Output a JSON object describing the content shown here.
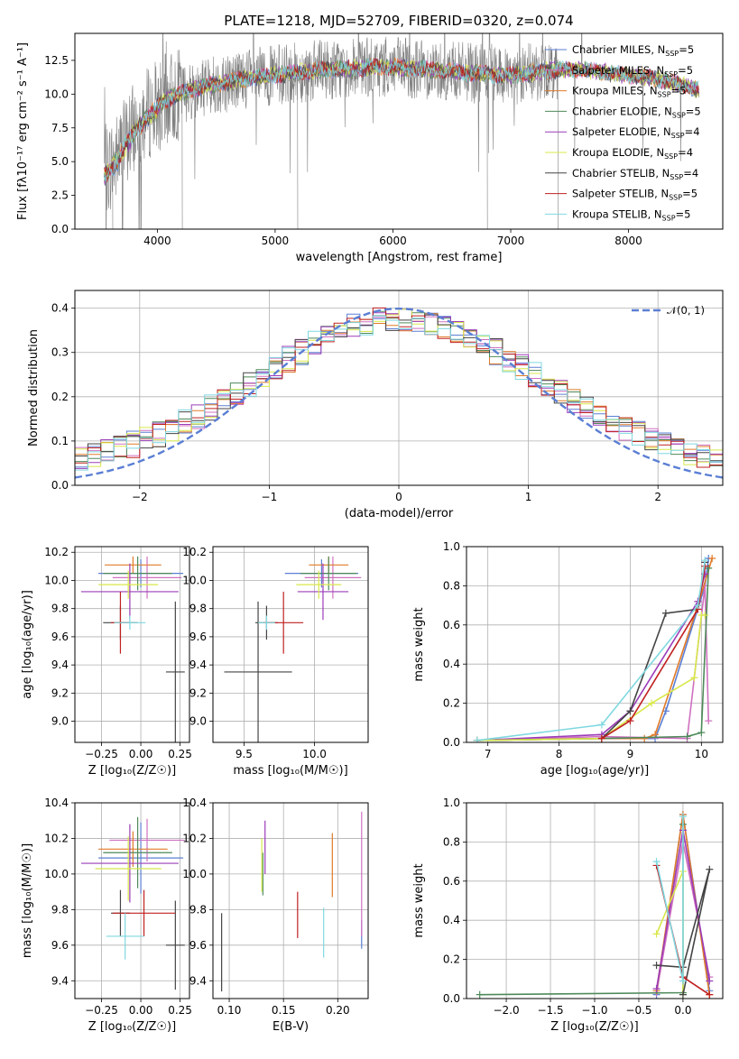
{
  "chart_data": [
    {
      "id": "spectrum",
      "type": "line",
      "title": "PLATE=1218, MJD=52709, FIBERID=0320, z=0.074",
      "xlabel": "wavelength [Angstrom, rest frame]",
      "ylabel": "Flux [fλ10⁻¹⁷ erg cm⁻² s⁻¹ A⁻¹]",
      "xlim": [
        3300,
        8800
      ],
      "ylim": [
        0,
        14.5
      ],
      "xticks": [
        4000,
        5000,
        6000,
        7000,
        8000
      ],
      "yticks": [
        0.0,
        2.5,
        5.0,
        7.5,
        10.0,
        12.5
      ],
      "grid": false,
      "legend_position": "top-right",
      "data_range": [
        3550,
        8600
      ],
      "continuum": {
        "x": [
          3550,
          3650,
          3750,
          3850,
          3950,
          4050,
          4150,
          4250,
          4400,
          4600,
          4800,
          5000,
          5200,
          5400,
          5600,
          5800,
          6000,
          6200,
          6400,
          6600,
          6800,
          7000,
          7200,
          7400,
          7600,
          7800,
          8000,
          8200,
          8400,
          8600
        ],
        "y": [
          4.2,
          5.2,
          6.8,
          8.0,
          8.8,
          9.4,
          9.9,
          10.2,
          10.6,
          10.9,
          11.2,
          11.4,
          11.6,
          11.8,
          11.9,
          12.0,
          12.0,
          11.9,
          11.8,
          11.6,
          11.5,
          11.4,
          11.6,
          11.8,
          11.8,
          11.6,
          11.4,
          11.2,
          10.8,
          10.3
        ]
      },
      "series": [
        {
          "name": "Chabrier MILES, N_SSP=5",
          "color": "#5b7fd4"
        },
        {
          "name": "Salpeter MILES, N_SSP=5",
          "color": "#d070c0"
        },
        {
          "name": "Kroupa MILES, N_SSP=5",
          "color": "#e07b28"
        },
        {
          "name": "Chabrier ELODIE, N_SSP=5",
          "color": "#4e8a5a"
        },
        {
          "name": "Salpeter ELODIE, N_SSP=4",
          "color": "#9b3cb8"
        },
        {
          "name": "Kroupa ELODIE, N_SSP=4",
          "color": "#d8e84a"
        },
        {
          "name": "Chabrier STELIB, N_SSP=4",
          "color": "#444444"
        },
        {
          "name": "Salpeter STELIB, N_SSP=5",
          "color": "#c02020"
        },
        {
          "name": "Kroupa STELIB, N_SSP=5",
          "color": "#7fd8e0"
        }
      ],
      "legend_parts": [
        {
          "pre": "Chabrier MILES, N",
          "sub": "SSP",
          "post": "=5"
        },
        {
          "pre": "Salpeter MILES, N",
          "sub": "SSP",
          "post": "=5"
        },
        {
          "pre": "Kroupa MILES, N",
          "sub": "SSP",
          "post": "=5"
        },
        {
          "pre": "Chabrier ELODIE, N",
          "sub": "SSP",
          "post": "=5"
        },
        {
          "pre": "Salpeter ELODIE, N",
          "sub": "SSP",
          "post": "=4"
        },
        {
          "pre": "Kroupa ELODIE, N",
          "sub": "SSP",
          "post": "=4"
        },
        {
          "pre": "Chabrier STELIB, N",
          "sub": "SSP",
          "post": "=4"
        },
        {
          "pre": "Salpeter STELIB, N",
          "sub": "SSP",
          "post": "=5"
        },
        {
          "pre": "Kroupa STELIB, N",
          "sub": "SSP",
          "post": "=5"
        }
      ],
      "data_series": {
        "name": "data",
        "color": "#808080"
      }
    },
    {
      "id": "residuals",
      "type": "histogram",
      "xlabel": "(data-model)/error",
      "ylabel": "Normed distribution",
      "xlim": [
        -2.5,
        2.5
      ],
      "ylim": [
        0,
        0.44
      ],
      "xticks": [
        -2,
        -1,
        0,
        1,
        2
      ],
      "yticks": [
        0.0,
        0.1,
        0.2,
        0.3,
        0.4
      ],
      "grid": true,
      "bin_width": 0.1,
      "bin_start": -2.5,
      "gaussian": {
        "label": "𝒩(0, 1)",
        "mean": 0,
        "sigma": 1,
        "color": "#5b7fd4"
      },
      "legend_position": "top-right",
      "series_note": "one step histogram per model series, same colors as spectrum panel"
    },
    {
      "id": "age-vs-Z",
      "type": "scatter",
      "xlabel": "Z [log₁₀(Z/Z☉)]",
      "ylabel": "age [log₁₀(age/yr)]",
      "xlim": [
        -0.42,
        0.31
      ],
      "ylim": [
        8.85,
        10.24
      ],
      "xticks": [
        -0.25,
        0.0,
        0.25
      ],
      "yticks": [
        9.0,
        9.2,
        9.4,
        9.6,
        9.8,
        10.0,
        10.2
      ],
      "grid": true,
      "points": [
        {
          "x": 0.0,
          "y": 10.05,
          "xerr": 0.27,
          "yerr": 0.1,
          "color": "#5b7fd4"
        },
        {
          "x": 0.04,
          "y": 10.02,
          "xerr": 0.22,
          "yerr": 0.15,
          "color": "#d070c0"
        },
        {
          "x": -0.05,
          "y": 10.11,
          "xerr": 0.18,
          "yerr": 0.06,
          "color": "#e07b28"
        },
        {
          "x": -0.02,
          "y": 10.05,
          "xerr": 0.22,
          "yerr": 0.12,
          "color": "#4e8a5a"
        },
        {
          "x": -0.07,
          "y": 9.92,
          "xerr": 0.31,
          "yerr": 0.2,
          "color": "#9b3cb8"
        },
        {
          "x": -0.08,
          "y": 9.97,
          "xerr": 0.19,
          "yerr": 0.1,
          "color": "#d8e84a"
        },
        {
          "x": 0.22,
          "y": 9.35,
          "xerr": 0.06,
          "yerr": 0.5,
          "color": "#444444"
        },
        {
          "x": -0.13,
          "y": 9.7,
          "xerr": 0.11,
          "yerr": 0.12,
          "color": "#444444"
        },
        {
          "x": -0.13,
          "y": 9.7,
          "xerr": 0.06,
          "yerr": 0.22,
          "color": "#c02020"
        },
        {
          "x": -0.07,
          "y": 9.7,
          "xerr": 0.1,
          "yerr": 0.05,
          "color": "#7fd8e0"
        }
      ]
    },
    {
      "id": "age-vs-mass",
      "type": "scatter",
      "xlabel": "mass [log₁₀(M/M☉)]",
      "ylabel": "",
      "xlim": [
        9.28,
        10.38
      ],
      "ylim": [
        8.85,
        10.24
      ],
      "xticks": [
        9.5,
        10.0
      ],
      "yticks": [
        9.0,
        9.2,
        9.4,
        9.6,
        9.8,
        10.0,
        10.2
      ],
      "grid": true,
      "points": [
        {
          "x": 10.05,
          "y": 10.05,
          "xerr": 0.26,
          "yerr": 0.1,
          "color": "#5b7fd4"
        },
        {
          "x": 10.13,
          "y": 10.02,
          "xerr": 0.2,
          "yerr": 0.15,
          "color": "#d070c0"
        },
        {
          "x": 10.1,
          "y": 10.11,
          "xerr": 0.14,
          "yerr": 0.06,
          "color": "#e07b28"
        },
        {
          "x": 10.1,
          "y": 10.05,
          "xerr": 0.2,
          "yerr": 0.12,
          "color": "#4e8a5a"
        },
        {
          "x": 10.06,
          "y": 9.92,
          "xerr": 0.18,
          "yerr": 0.2,
          "color": "#9b3cb8"
        },
        {
          "x": 10.03,
          "y": 9.97,
          "xerr": 0.16,
          "yerr": 0.1,
          "color": "#d8e84a"
        },
        {
          "x": 9.6,
          "y": 9.35,
          "xerr": 0.24,
          "yerr": 0.5,
          "color": "#444444"
        },
        {
          "x": 9.66,
          "y": 9.7,
          "xerr": 0.08,
          "yerr": 0.12,
          "color": "#444444"
        },
        {
          "x": 9.78,
          "y": 9.7,
          "xerr": 0.14,
          "yerr": 0.22,
          "color": "#c02020"
        },
        {
          "x": 9.66,
          "y": 9.7,
          "xerr": 0.06,
          "yerr": 0.05,
          "color": "#7fd8e0"
        }
      ]
    },
    {
      "id": "massweight-vs-age",
      "type": "line",
      "xlabel": "age [log₁₀(age/yr)]",
      "ylabel": "mass weight",
      "xlim": [
        6.7,
        10.3
      ],
      "ylim": [
        0,
        1.0
      ],
      "xticks": [
        7,
        8,
        9,
        10
      ],
      "yticks": [
        0.0,
        0.2,
        0.4,
        0.6,
        0.8,
        1.0
      ],
      "grid": true,
      "series": [
        {
          "name": "Chabrier MILES",
          "color": "#5b7fd4",
          "x": [
            6.85,
            8.6,
            9.35,
            9.5,
            10.05,
            10.1
          ],
          "y": [
            0.01,
            0.02,
            0.02,
            0.16,
            0.8,
            0.94
          ]
        },
        {
          "name": "Salpeter MILES",
          "color": "#d070c0",
          "x": [
            6.85,
            8.6,
            9.8,
            10.05,
            10.1
          ],
          "y": [
            0.01,
            0.03,
            0.02,
            0.8,
            0.11
          ]
        },
        {
          "name": "Kroupa MILES",
          "color": "#e07b28",
          "x": [
            6.85,
            8.6,
            9.2,
            9.35,
            9.95,
            10.15
          ],
          "y": [
            0.01,
            0.02,
            0.02,
            0.04,
            0.7,
            0.94
          ]
        },
        {
          "name": "Chabrier ELODIE",
          "color": "#4e8a5a",
          "x": [
            6.85,
            8.6,
            9.8,
            10.0,
            10.1
          ],
          "y": [
            0.01,
            0.02,
            0.03,
            0.05,
            0.89
          ]
        },
        {
          "name": "Salpeter ELODIE",
          "color": "#9b3cb8",
          "x": [
            6.85,
            8.6,
            9.0,
            9.95,
            10.05
          ],
          "y": [
            0.01,
            0.04,
            0.16,
            0.72,
            0.86
          ]
        },
        {
          "name": "Kroupa ELODIE",
          "color": "#d8e84a",
          "x": [
            6.85,
            8.6,
            9.3,
            9.9,
            10.0,
            10.05
          ],
          "y": [
            0.01,
            0.02,
            0.2,
            0.33,
            0.65,
            0.65
          ]
        },
        {
          "name": "Chabrier STELIB",
          "color": "#444444",
          "x": [
            8.6,
            9.0,
            9.5,
            9.95,
            10.05
          ],
          "y": [
            0.02,
            0.16,
            0.66,
            0.68,
            0.92
          ]
        },
        {
          "name": "Salpeter STELIB",
          "color": "#c02020",
          "x": [
            8.6,
            9.0,
            9.95,
            10.05
          ],
          "y": [
            0.02,
            0.11,
            0.68,
            0.9
          ]
        },
        {
          "name": "Kroupa STELIB",
          "color": "#7fd8e0",
          "x": [
            6.85,
            8.6,
            9.95,
            10.05
          ],
          "y": [
            0.01,
            0.09,
            0.7,
            0.93
          ]
        }
      ]
    },
    {
      "id": "mass-vs-Z",
      "type": "scatter",
      "xlabel": "Z [log₁₀(Z/Z☉)]",
      "ylabel": "mass [log₁₀(M/M☉)]",
      "xlim": [
        -0.42,
        0.31
      ],
      "ylim": [
        9.3,
        10.4
      ],
      "xticks": [
        -0.25,
        0.0,
        0.25
      ],
      "yticks": [
        9.4,
        9.6,
        9.8,
        10.0,
        10.2,
        10.4
      ],
      "grid": true,
      "points": [
        {
          "x": 0.0,
          "y": 10.09,
          "xerr": 0.27,
          "yerr": 0.2,
          "color": "#5b7fd4"
        },
        {
          "x": 0.04,
          "y": 10.19,
          "xerr": 0.24,
          "yerr": 0.12,
          "color": "#d070c0"
        },
        {
          "x": -0.05,
          "y": 10.14,
          "xerr": 0.22,
          "yerr": 0.1,
          "color": "#e07b28"
        },
        {
          "x": -0.02,
          "y": 10.12,
          "xerr": 0.22,
          "yerr": 0.2,
          "color": "#4e8a5a"
        },
        {
          "x": -0.07,
          "y": 10.06,
          "xerr": 0.31,
          "yerr": 0.22,
          "color": "#9b3cb8"
        },
        {
          "x": -0.08,
          "y": 10.03,
          "xerr": 0.21,
          "yerr": 0.18,
          "color": "#d8e84a"
        },
        {
          "x": 0.22,
          "y": 9.6,
          "xerr": 0.06,
          "yerr": 0.25,
          "color": "#444444"
        },
        {
          "x": -0.13,
          "y": 9.78,
          "xerr": 0.06,
          "yerr": 0.13,
          "color": "#444444"
        },
        {
          "x": 0.02,
          "y": 9.78,
          "xerr": 0.2,
          "yerr": 0.13,
          "color": "#c02020"
        },
        {
          "x": -0.1,
          "y": 9.65,
          "xerr": 0.12,
          "yerr": 0.13,
          "color": "#7fd8e0"
        }
      ]
    },
    {
      "id": "mass-vs-EBV",
      "type": "scatter",
      "xlabel": "E(B-V)",
      "ylabel": "",
      "xlim": [
        0.085,
        0.228
      ],
      "ylim": [
        9.3,
        10.4
      ],
      "xticks": [
        0.1,
        0.15,
        0.2
      ],
      "yticks": [
        9.4,
        9.6,
        9.8,
        10.0,
        10.2,
        10.4
      ],
      "grid": true,
      "points": [
        {
          "x": 0.222,
          "y": 9.66,
          "xerr": 0.0,
          "yerr": 0.08,
          "color": "#5b7fd4"
        },
        {
          "x": 0.222,
          "y": 10.0,
          "xerr": 0.0,
          "yerr": 0.35,
          "color": "#d070c0"
        },
        {
          "x": 0.195,
          "y": 10.05,
          "xerr": 0.0,
          "yerr": 0.18,
          "color": "#e07b28"
        },
        {
          "x": 0.131,
          "y": 10.0,
          "xerr": 0.0,
          "yerr": 0.12,
          "color": "#4e8a5a"
        },
        {
          "x": 0.133,
          "y": 10.15,
          "xerr": 0.0,
          "yerr": 0.15,
          "color": "#9b3cb8"
        },
        {
          "x": 0.13,
          "y": 10.05,
          "xerr": 0.0,
          "yerr": 0.15,
          "color": "#d8e84a"
        },
        {
          "x": 0.093,
          "y": 9.56,
          "xerr": 0.0,
          "yerr": 0.22,
          "color": "#444444"
        },
        {
          "x": 0.163,
          "y": 9.77,
          "xerr": 0.0,
          "yerr": 0.13,
          "color": "#c02020"
        },
        {
          "x": 0.187,
          "y": 9.67,
          "xerr": 0.0,
          "yerr": 0.14,
          "color": "#7fd8e0"
        }
      ]
    },
    {
      "id": "massweight-vs-Z",
      "type": "line",
      "xlabel": "Z [log₁₀(Z/Z☉)]",
      "ylabel": "mass weight",
      "xlim": [
        -2.45,
        0.45
      ],
      "ylim": [
        0,
        1.0
      ],
      "xticks": [
        -2.0,
        -1.5,
        -1.0,
        -0.5,
        0.0
      ],
      "yticks": [
        0.0,
        0.2,
        0.4,
        0.6,
        0.8,
        1.0
      ],
      "grid": true,
      "series": [
        {
          "name": "Chabrier MILES",
          "color": "#5b7fd4",
          "x": [
            -0.3,
            0.0,
            0.3
          ],
          "y": [
            0.02,
            0.94,
            0.04
          ]
        },
        {
          "name": "Salpeter MILES",
          "color": "#d070c0",
          "x": [
            -0.3,
            0.0,
            0.3
          ],
          "y": [
            0.03,
            0.8,
            0.11
          ]
        },
        {
          "name": "Kroupa MILES",
          "color": "#e07b28",
          "x": [
            -0.3,
            0.0,
            0.3
          ],
          "y": [
            0.04,
            0.94,
            0.02
          ]
        },
        {
          "name": "Chabrier ELODIE",
          "color": "#4e8a5a",
          "x": [
            -2.3,
            0.0,
            0.0
          ],
          "y": [
            0.02,
            0.03,
            0.89
          ]
        },
        {
          "name": "Salpeter ELODIE",
          "color": "#9b3cb8",
          "x": [
            -0.3,
            0.0,
            0.3
          ],
          "y": [
            0.05,
            0.86,
            0.09
          ]
        },
        {
          "name": "Kroupa ELODIE",
          "color": "#d8e84a",
          "x": [
            -0.3,
            0.0,
            0.0
          ],
          "y": [
            0.33,
            0.65,
            0.02
          ]
        },
        {
          "name": "Chabrier STELIB",
          "color": "#444444",
          "x": [
            -0.3,
            0.0,
            0.3,
            0.0
          ],
          "y": [
            0.17,
            0.16,
            0.66,
            0.02
          ]
        },
        {
          "name": "Salpeter STELIB",
          "color": "#c02020",
          "x": [
            -0.3,
            0.0,
            0.3
          ],
          "y": [
            0.68,
            0.11,
            0.02
          ]
        },
        {
          "name": "Kroupa STELIB",
          "color": "#7fd8e0",
          "x": [
            -0.3,
            0.0,
            0.0
          ],
          "y": [
            0.7,
            0.09,
            0.93
          ]
        }
      ]
    }
  ]
}
